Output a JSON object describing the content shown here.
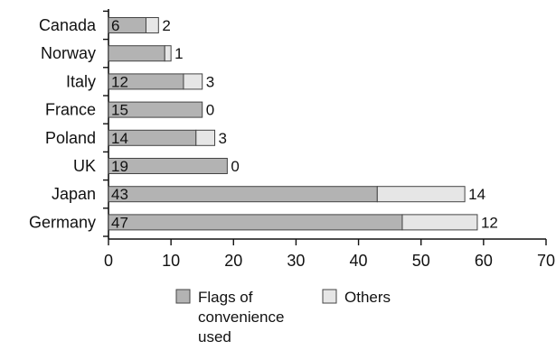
{
  "chart_data": {
    "type": "bar",
    "orientation": "horizontal",
    "stacked": true,
    "categories": [
      "Canada",
      "Norway",
      "Italy",
      "France",
      "Poland",
      "UK",
      "Japan",
      "Germany"
    ],
    "series": [
      {
        "name": "Flags of convenience used",
        "legend_lines": [
          "Flags of",
          "convenience",
          "used"
        ],
        "color": "#b3b3b3",
        "values": [
          6,
          9,
          12,
          15,
          14,
          19,
          43,
          47
        ],
        "labels": [
          "6",
          "",
          "12",
          "15",
          "14",
          "19",
          "43",
          "47"
        ]
      },
      {
        "name": "Others",
        "legend_lines": [
          "Others"
        ],
        "color": "#e6e6e6",
        "values": [
          2,
          1,
          3,
          0,
          3,
          0,
          14,
          12
        ],
        "labels": [
          "2",
          "1",
          "3",
          "0",
          "3",
          "0",
          "14",
          "12"
        ]
      }
    ],
    "xlim": [
      0,
      70
    ],
    "xticks": [
      0,
      10,
      20,
      30,
      40,
      50,
      60,
      70
    ],
    "title": "",
    "xlabel": "",
    "ylabel": "",
    "grid": false,
    "legend_position": "bottom"
  }
}
